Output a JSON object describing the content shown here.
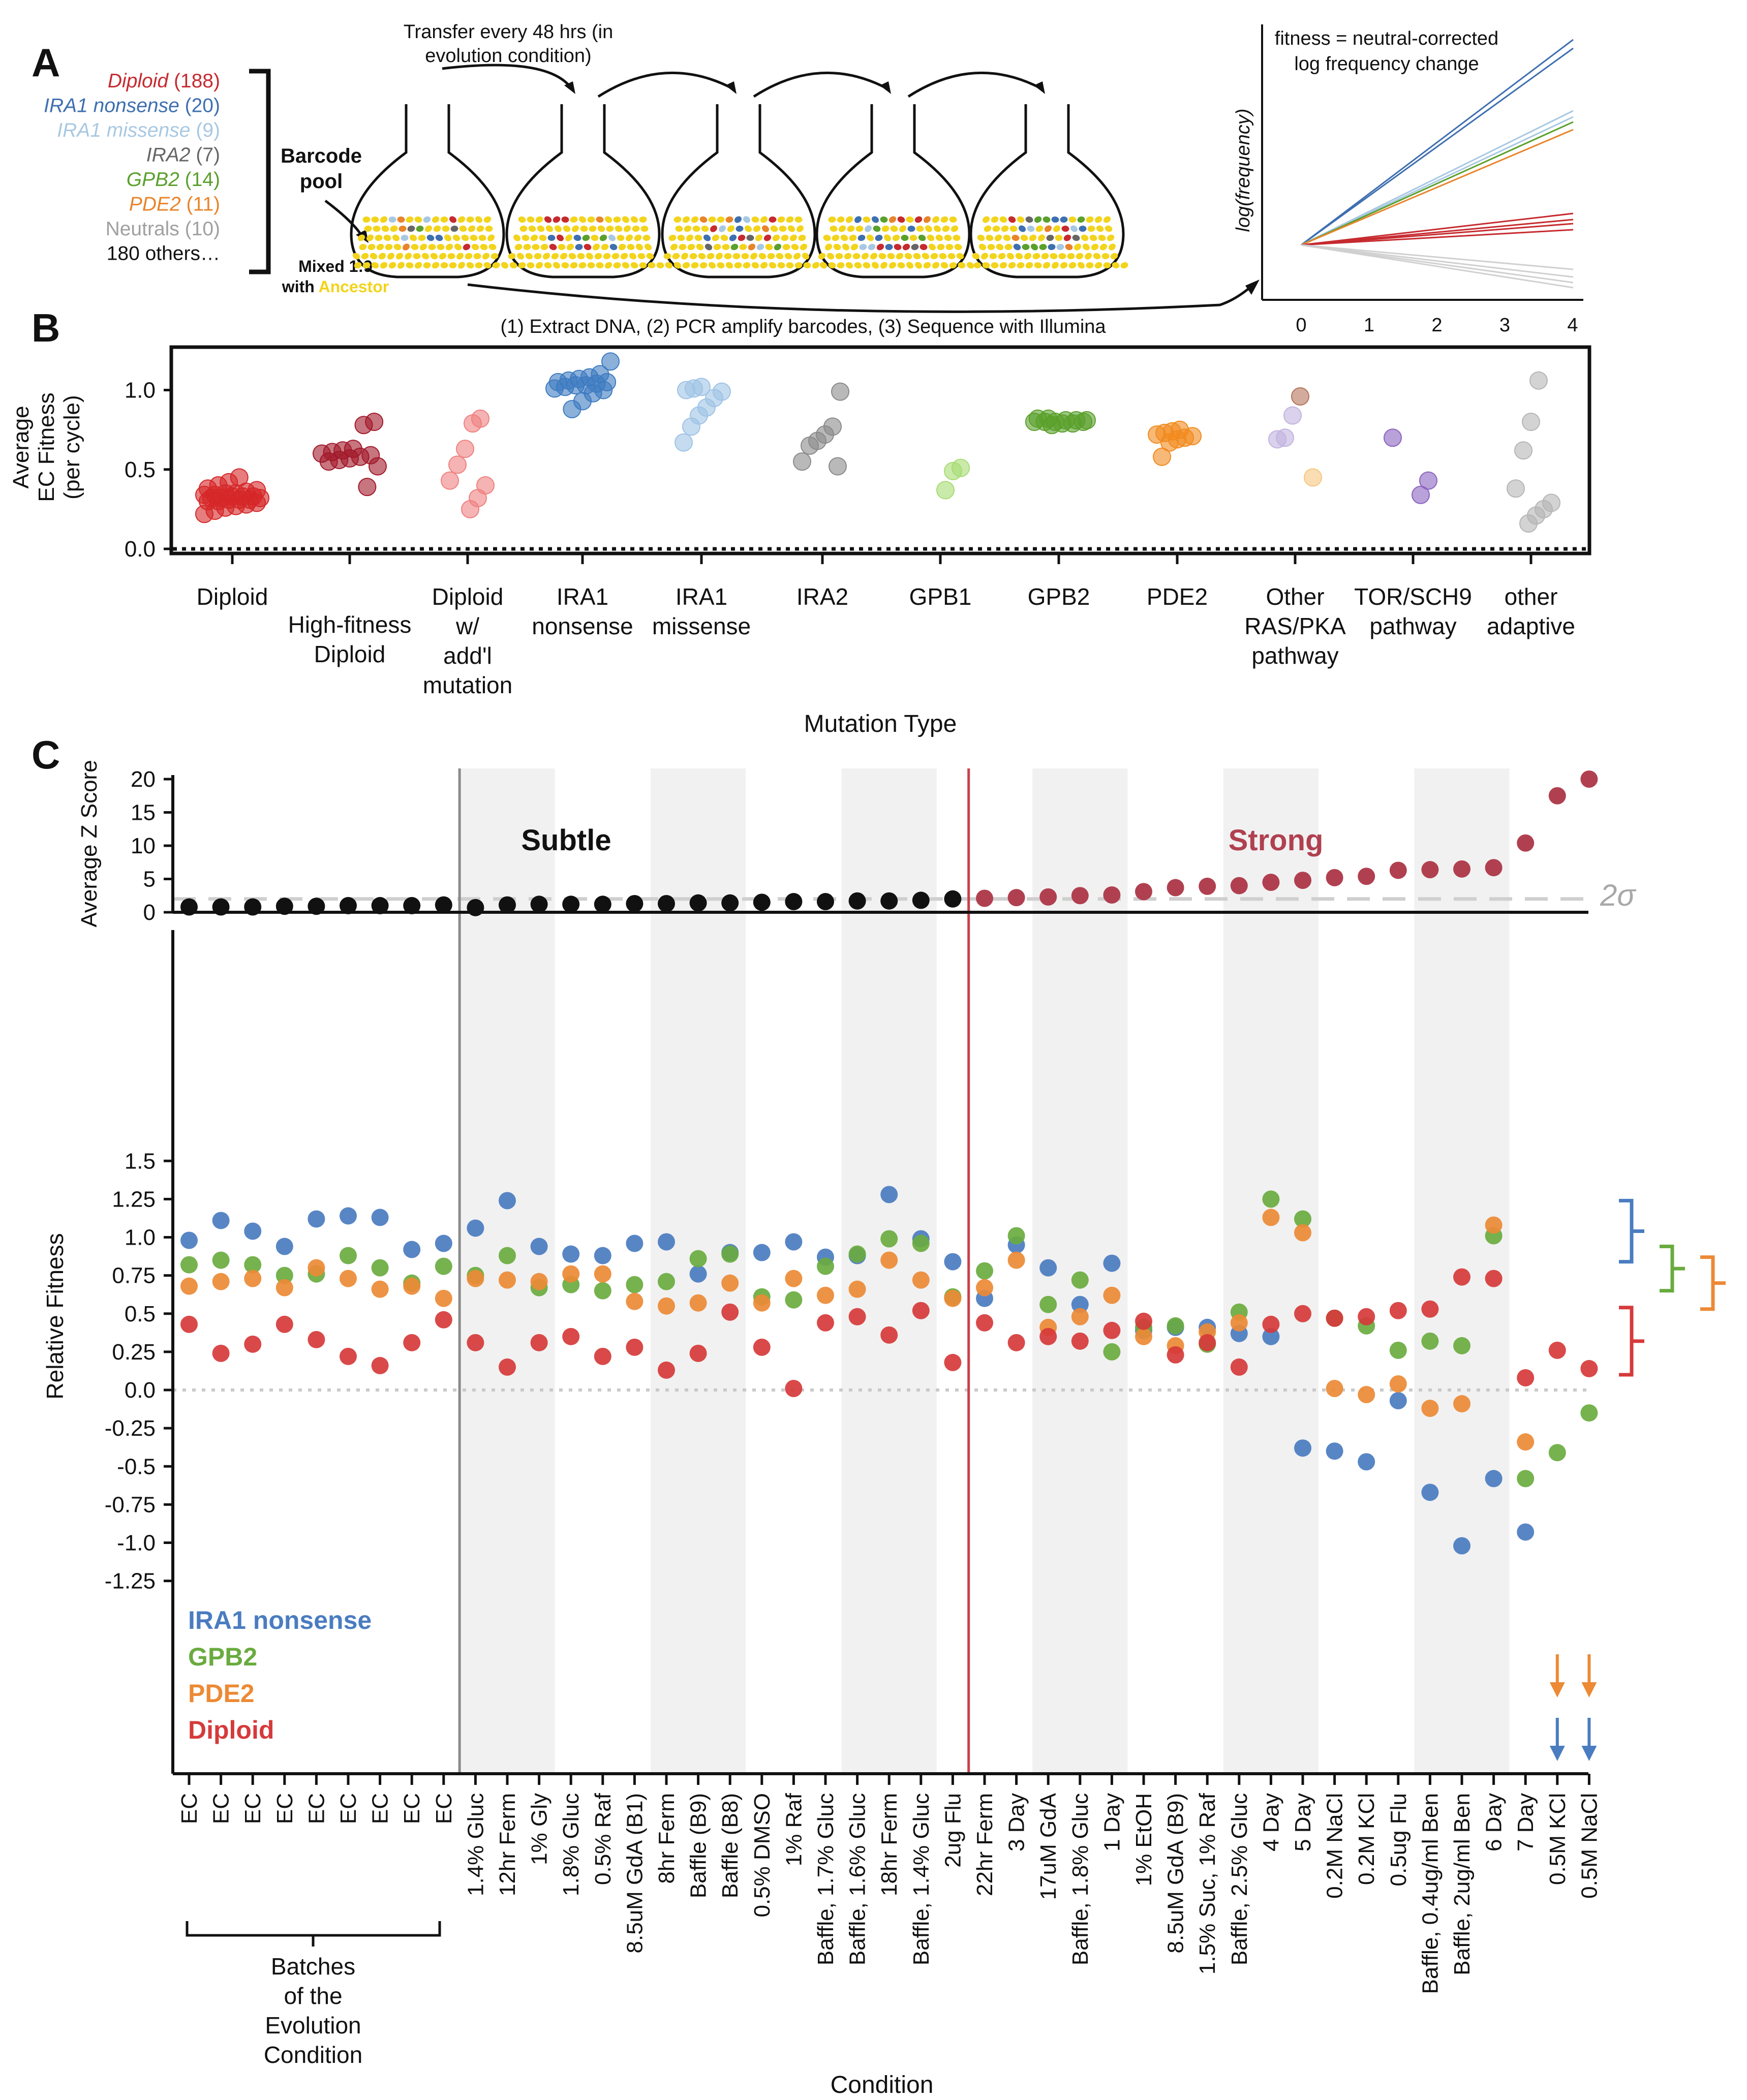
{
  "panels": {
    "A": "A",
    "B": "B",
    "C": "C"
  },
  "panel_a": {
    "legend": [
      {
        "name": "Diploid",
        "count": "(188)",
        "color": "#c62a2f",
        "italic": true
      },
      {
        "name": "IRA1 nonsense",
        "count": "(20)",
        "color": "#3e6fb0",
        "italic": true
      },
      {
        "name": "IRA1 missense",
        "count": "(9)",
        "color": "#a8c8e2",
        "italic": true
      },
      {
        "name": "IRA2",
        "count": "(7)",
        "color": "#666666",
        "italic": true
      },
      {
        "name": "GPB2",
        "count": "(14)",
        "color": "#5aa02c",
        "italic": true
      },
      {
        "name": "PDE2",
        "count": "(11)",
        "color": "#e8842a",
        "italic": true
      },
      {
        "name": "Neutrals (10)",
        "count": "",
        "color": "#a0a0a0",
        "italic": false
      },
      {
        "name": "180 others…",
        "count": "",
        "color": "#111111",
        "italic": false
      }
    ],
    "barcode_pool": [
      "Barcode",
      "pool"
    ],
    "mixed": "Mixed 1:9",
    "with_ancestor": [
      "with ",
      "Ancestor"
    ],
    "transfer_label": [
      "Transfer every 48 hrs (in",
      "evolution condition)"
    ],
    "sequence_label": "(1) Extract DNA, (2) PCR amplify barcodes, (3) Sequence with Illumina",
    "inset_title": [
      "fitness = neutral-corrected",
      "log frequency change"
    ],
    "inset_ylabel": "log(frequency)",
    "inset_xticks": [
      "0",
      "1",
      "2",
      "3",
      "4"
    ],
    "ancestor_color": "#f2d41c"
  },
  "chart_data": [
    {
      "type": "scatter",
      "panel": "B",
      "ylabel": [
        "Average",
        "EC Fitness",
        "(per cycle)"
      ],
      "xlabel": "Mutation Type",
      "ylim": [
        -0.03,
        1.28
      ],
      "yticks": [
        "0.0",
        "0.5",
        "1.0"
      ],
      "categories": [
        {
          "label": [
            "Diploid"
          ],
          "color": "#d62728",
          "values": [
            0.22,
            0.24,
            0.26,
            0.27,
            0.28,
            0.29,
            0.3,
            0.3,
            0.31,
            0.31,
            0.31,
            0.32,
            0.32,
            0.32,
            0.33,
            0.33,
            0.33,
            0.34,
            0.34,
            0.35,
            0.35,
            0.36,
            0.37,
            0.38,
            0.4,
            0.42,
            0.45
          ]
        },
        {
          "label": [
            "High-fitness",
            "Diploid"
          ],
          "color": "#a1192a",
          "values": [
            0.39,
            0.52,
            0.55,
            0.56,
            0.57,
            0.58,
            0.59,
            0.6,
            0.61,
            0.62,
            0.63,
            0.78,
            0.8
          ]
        },
        {
          "label": [
            "Diploid",
            "w/",
            "add'l",
            "mutation"
          ],
          "color": "#f08080",
          "values": [
            0.25,
            0.32,
            0.4,
            0.43,
            0.53,
            0.63,
            0.79,
            0.82
          ]
        },
        {
          "label": [
            "IRA1",
            "nonsense"
          ],
          "color": "#3e7cc1",
          "values": [
            0.88,
            0.93,
            0.98,
            1.0,
            1.01,
            1.02,
            1.03,
            1.03,
            1.04,
            1.05,
            1.05,
            1.06,
            1.07,
            1.08,
            1.1,
            1.18
          ]
        },
        {
          "label": [
            "IRA1",
            "missense"
          ],
          "color": "#9fc3e5",
          "values": [
            0.67,
            0.77,
            0.84,
            0.89,
            0.95,
            0.99,
            1.0,
            1.01,
            1.02
          ]
        },
        {
          "label": [
            "IRA2"
          ],
          "color": "#8a8a8a",
          "values": [
            0.52,
            0.55,
            0.65,
            0.68,
            0.72,
            0.77,
            0.99
          ]
        },
        {
          "label": [
            "GPB1"
          ],
          "color": "#a6dc72",
          "values": [
            0.37,
            0.49,
            0.51
          ]
        },
        {
          "label": [
            "GPB2"
          ],
          "color": "#5aa02c",
          "values": [
            0.78,
            0.79,
            0.79,
            0.8,
            0.8,
            0.8,
            0.8,
            0.81,
            0.81,
            0.81,
            0.82,
            0.82
          ]
        },
        {
          "label": [
            "PDE2"
          ],
          "color": "#f28b1e",
          "values": [
            0.58,
            0.67,
            0.69,
            0.7,
            0.71,
            0.72,
            0.73,
            0.74,
            0.75
          ]
        },
        {
          "label": [
            "Other",
            "RAS/PKA",
            "pathway"
          ],
          "color": "#c2b3e0",
          "values": [
            0.45,
            0.69,
            0.7,
            0.84,
            0.96
          ],
          "colors": [
            "#f7c77e",
            "#c2b3e0",
            "#c2b3e0",
            "#c2b3e0",
            "#b4735a"
          ]
        },
        {
          "label": [
            "TOR/SCH9",
            "pathway"
          ],
          "color": "#8a63bf",
          "values": [
            0.34,
            0.43,
            0.7
          ]
        },
        {
          "label": [
            "other",
            "adaptive"
          ],
          "color": "#b5b5b5",
          "values": [
            0.16,
            0.21,
            0.25,
            0.29,
            0.38,
            0.62,
            0.8,
            1.06
          ]
        }
      ]
    },
    {
      "type": "scatter",
      "panel": "C-top",
      "ylabel": [
        "Average Z Score"
      ],
      "ylim": [
        0,
        20
      ],
      "yticks": [
        "0",
        "5",
        "10",
        "15",
        "20"
      ],
      "threshold_label": "2σ",
      "threshold": 2,
      "subtle_label": "Subtle",
      "strong_label": "Strong",
      "subtle_color": "#111111",
      "strong_color": "#b04050",
      "values": [
        0.8,
        0.8,
        0.8,
        0.9,
        0.9,
        1.0,
        1.0,
        1.0,
        1.1,
        0.7,
        1.1,
        1.2,
        1.2,
        1.2,
        1.3,
        1.3,
        1.4,
        1.4,
        1.5,
        1.6,
        1.6,
        1.7,
        1.7,
        1.8,
        2.0,
        2.1,
        2.2,
        2.3,
        2.5,
        2.6,
        3.1,
        3.7,
        3.9,
        4.0,
        4.5,
        4.8,
        5.2,
        5.4,
        6.3,
        6.4,
        6.5,
        6.7,
        10.4,
        17.5,
        20.0
      ]
    },
    {
      "type": "scatter",
      "panel": "C-bottom",
      "ylabel": "Relative Fitness",
      "xlabel": "Condition",
      "ylim": [
        -1.25,
        1.5
      ],
      "yticks": [
        "1.5",
        "1.25",
        "1.0",
        "0.75",
        "0.5",
        "0.25",
        "0.0",
        "-0.25",
        "-0.5",
        "-0.75",
        "-1.0",
        "-1.25"
      ],
      "categories": [
        "EC",
        "EC",
        "EC",
        "EC",
        "EC",
        "EC",
        "EC",
        "EC",
        "EC",
        "1.4% Gluc",
        "12hr Ferm",
        "1% Gly",
        "1.8% Gluc",
        "0.5% Raf",
        "8.5uM GdA (B1)",
        "8hr Ferm",
        "Baffle (B9)",
        "Baffle (B8)",
        "0.5% DMSO",
        "1% Raf",
        "Baffle, 1.7% Gluc",
        "Baffle, 1.6% Gluc",
        "18hr Ferm",
        "Baffle, 1.4% Gluc",
        "2ug Flu",
        "22hr Ferm",
        "3 Day",
        "17uM GdA",
        "Baffle, 1.8% Gluc",
        "1 Day",
        "1% EtOH",
        "8.5uM GdA (B9)",
        "1.5% Suc, 1% Raf",
        "Baffle, 2.5% Gluc",
        "4 Day",
        "5 Day",
        "0.2M NaCl",
        "0.2M KCl",
        "0.5ug Flu",
        "Baffle, 0.4ug/ml Ben",
        "Baffle, 2ug/ml Ben",
        "6 Day",
        "7 Day",
        "0.5M KCl",
        "0.5M NaCl"
      ],
      "batches_label": [
        "Batches",
        "of the",
        "Evolution",
        "Condition"
      ],
      "series": [
        {
          "name": "IRA1 nonsense",
          "color": "#4a7cc0",
          "values": [
            0.98,
            1.11,
            1.04,
            0.94,
            1.12,
            1.14,
            1.13,
            0.92,
            0.96,
            1.06,
            1.24,
            0.94,
            0.89,
            0.88,
            0.96,
            0.97,
            0.76,
            0.9,
            0.9,
            0.97,
            0.87,
            0.88,
            1.28,
            0.99,
            0.84,
            0.6,
            0.95,
            0.8,
            0.56,
            0.83,
            0.39,
            0.41,
            0.41,
            0.37,
            0.35,
            -0.38,
            -0.4,
            -0.47,
            -0.07,
            -0.67,
            -1.02,
            -0.58,
            -0.93,
            null,
            null
          ]
        },
        {
          "name": "GPB2",
          "color": "#6aab3f",
          "values": [
            0.82,
            0.85,
            0.82,
            0.75,
            0.76,
            0.88,
            0.8,
            0.7,
            0.81,
            0.75,
            0.88,
            0.67,
            0.69,
            0.65,
            0.69,
            0.71,
            0.86,
            0.89,
            0.61,
            0.59,
            0.81,
            0.89,
            0.99,
            0.96,
            0.61,
            0.78,
            1.01,
            0.56,
            0.72,
            0.25,
            0.41,
            0.42,
            0.3,
            0.51,
            1.25,
            1.12,
            0.47,
            0.42,
            0.26,
            0.32,
            0.29,
            1.01,
            -0.58,
            -0.41,
            -0.15
          ]
        },
        {
          "name": "PDE2",
          "color": "#ec8a35",
          "values": [
            0.68,
            0.71,
            0.73,
            0.67,
            0.8,
            0.73,
            0.66,
            0.68,
            0.6,
            0.73,
            0.72,
            0.71,
            0.76,
            0.76,
            0.58,
            0.55,
            0.57,
            0.7,
            0.57,
            0.73,
            0.62,
            0.66,
            0.85,
            0.72,
            0.6,
            0.67,
            0.85,
            0.41,
            0.48,
            0.62,
            0.35,
            0.29,
            0.38,
            0.44,
            1.13,
            1.03,
            0.01,
            -0.03,
            0.04,
            -0.12,
            -0.09,
            1.08,
            -0.34,
            null,
            null
          ]
        },
        {
          "name": "Diploid",
          "color": "#d63a3a",
          "values": [
            0.43,
            0.24,
            0.3,
            0.43,
            0.33,
            0.22,
            0.16,
            0.31,
            0.46,
            0.31,
            0.15,
            0.31,
            0.35,
            0.22,
            0.28,
            0.13,
            0.24,
            0.51,
            0.28,
            0.01,
            0.44,
            0.48,
            0.36,
            0.52,
            0.18,
            0.44,
            0.31,
            0.35,
            0.32,
            0.39,
            0.45,
            0.23,
            0.31,
            0.15,
            0.43,
            0.5,
            0.47,
            0.48,
            0.52,
            0.53,
            0.74,
            0.73,
            0.08,
            0.26,
            0.14
          ]
        }
      ],
      "offscale_arrows": [
        {
          "index": 43,
          "colors": [
            "#ec8a35",
            "#4a7cc0"
          ]
        },
        {
          "index": 44,
          "colors": [
            "#ec8a35",
            "#4a7cc0"
          ]
        }
      ],
      "ranges": [
        {
          "name": "IRA1 nonsense",
          "color": "#4a7cc0",
          "low": 0.84,
          "high": 1.24
        },
        {
          "name": "GPB2",
          "color": "#6aab3f",
          "low": 0.65,
          "high": 0.94
        },
        {
          "name": "PDE2",
          "color": "#ec8a35",
          "low": 0.53,
          "high": 0.87
        },
        {
          "name": "Diploid",
          "color": "#d63a3a",
          "low": 0.1,
          "high": 0.54
        }
      ]
    }
  ]
}
